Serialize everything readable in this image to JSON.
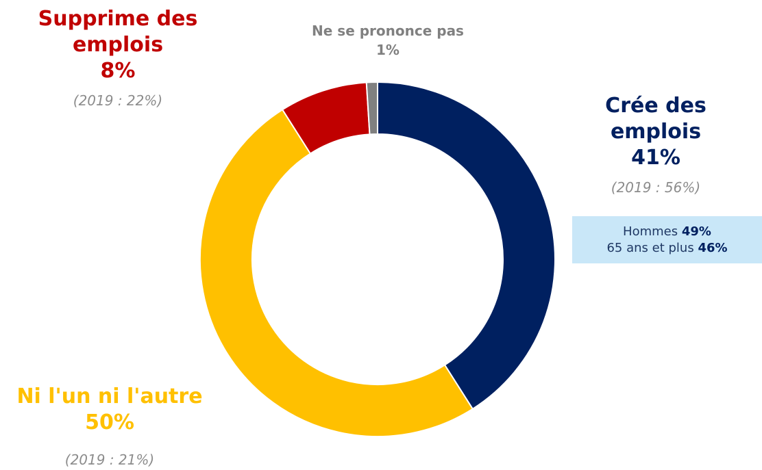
{
  "chart_data": {
    "type": "donut",
    "categories": [
      "Crée des emplois",
      "Ni l'un ni l'autre",
      "Supprime des emplois",
      "Ne se prononce pas"
    ],
    "values": [
      41,
      50,
      8,
      1
    ],
    "value_labels": [
      "41%",
      "50%",
      "8%",
      "1%"
    ],
    "colors": [
      "#002060",
      "#FFC000",
      "#C00000",
      "#808080"
    ],
    "annotations": [
      "(2019 : 56%)",
      "(2019 : 21%)",
      "(2019 : 22%)",
      null
    ],
    "callout": {
      "lines": [
        {
          "text": "Hommes",
          "value": "49%"
        },
        {
          "text": "65 ans et plus",
          "value": "46%"
        }
      ]
    }
  }
}
